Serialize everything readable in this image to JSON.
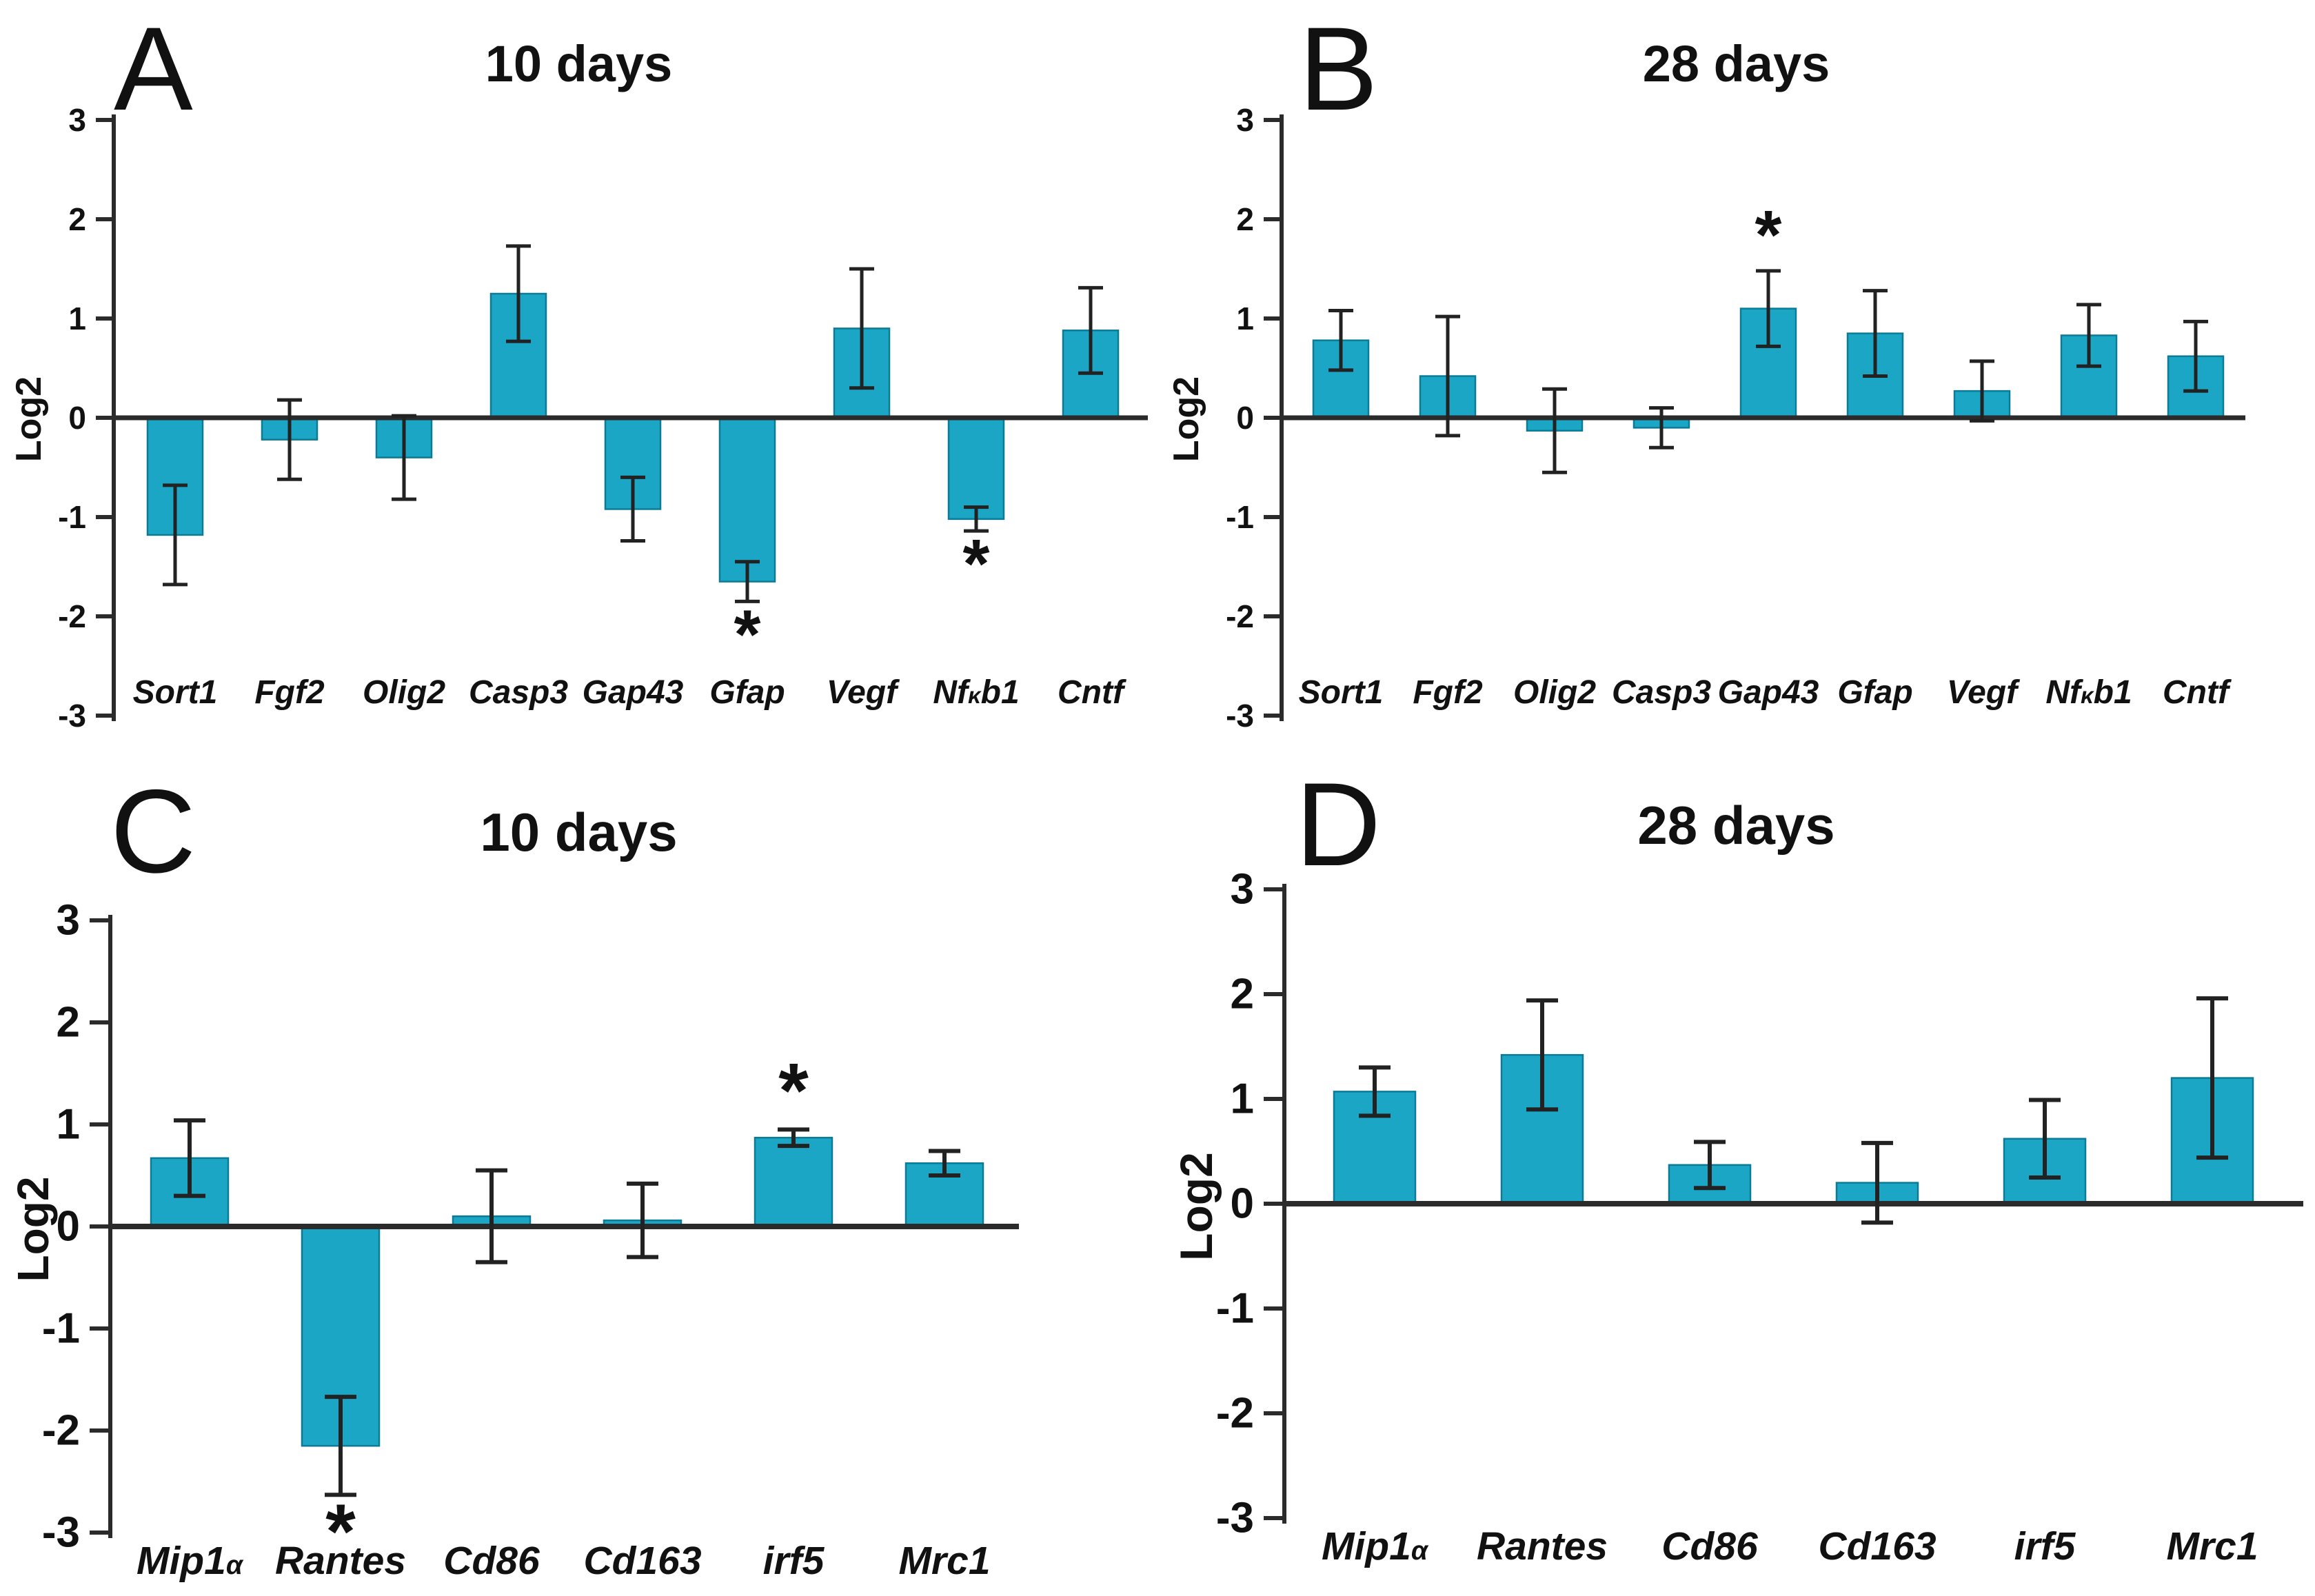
{
  "figure": {
    "background": "#ffffff",
    "bar_color": "#1BA6C6",
    "bar_edge_color": "#0C7C96",
    "error_color": "#222222",
    "axis_color": "#2b2b2b",
    "text_color": "#111111",
    "sig_symbol": "*"
  },
  "chart_data": [
    {
      "type": "bar",
      "panel_letter": "A",
      "title": "10 days",
      "ylabel": "Log2",
      "ylim": [
        -3,
        3
      ],
      "yticks": [
        3,
        2,
        1,
        0,
        -1,
        -2,
        -3
      ],
      "grid": false,
      "legend": null,
      "categories": [
        "Sort1",
        "Fgf2",
        "Olig2",
        "Casp3",
        "Gap43",
        "Gfap",
        "Vegf",
        "Nfκb1",
        "Cntf"
      ],
      "values": [
        -1.18,
        -0.22,
        -0.4,
        1.25,
        -0.92,
        -1.65,
        0.9,
        -1.02,
        0.88
      ],
      "errors": [
        0.5,
        0.4,
        0.42,
        0.48,
        0.32,
        0.2,
        0.6,
        0.12,
        0.43
      ],
      "significant": [
        null,
        null,
        null,
        null,
        null,
        "below",
        null,
        "below",
        null
      ]
    },
    {
      "type": "bar",
      "panel_letter": "B",
      "title": "28 days",
      "ylabel": "Log2",
      "ylim": [
        -3,
        3
      ],
      "yticks": [
        3,
        2,
        1,
        0,
        -1,
        -2,
        -3
      ],
      "grid": false,
      "legend": null,
      "categories": [
        "Sort1",
        "Fgf2",
        "Olig2",
        "Casp3",
        "Gap43",
        "Gfap",
        "Vegf",
        "Nfκb1",
        "Cntf"
      ],
      "values": [
        0.78,
        0.42,
        -0.13,
        -0.1,
        1.1,
        0.85,
        0.27,
        0.83,
        0.62
      ],
      "errors": [
        0.3,
        0.6,
        0.42,
        0.2,
        0.38,
        0.43,
        0.3,
        0.31,
        0.35
      ],
      "significant": [
        null,
        null,
        null,
        null,
        "above",
        null,
        null,
        null,
        null
      ]
    },
    {
      "type": "bar",
      "panel_letter": "C",
      "title": "10 days",
      "ylabel": "Log2",
      "ylim": [
        -3,
        3
      ],
      "yticks": [
        3,
        2,
        1,
        0,
        -1,
        -2,
        -3
      ],
      "grid": false,
      "legend": null,
      "categories": [
        "Mip1α",
        "Rantes",
        "Cd86",
        "Cd163",
        "irf5",
        "Mrc1"
      ],
      "values": [
        0.67,
        -2.15,
        0.1,
        0.06,
        0.87,
        0.62
      ],
      "errors": [
        0.37,
        0.48,
        0.45,
        0.36,
        0.08,
        0.12
      ],
      "significant": [
        null,
        "below",
        null,
        null,
        "above",
        null
      ]
    },
    {
      "type": "bar",
      "panel_letter": "D",
      "title": "28 days",
      "ylabel": "Log2",
      "ylim": [
        -3,
        3
      ],
      "yticks": [
        3,
        2,
        1,
        0,
        -1,
        -2,
        -3
      ],
      "grid": false,
      "legend": null,
      "categories": [
        "Mip1α",
        "Rantes",
        "Cd86",
        "Cd163",
        "irf5",
        "Mrc1"
      ],
      "values": [
        1.07,
        1.42,
        0.37,
        0.2,
        0.62,
        1.2
      ],
      "errors": [
        0.23,
        0.52,
        0.22,
        0.38,
        0.37,
        0.76
      ],
      "significant": [
        null,
        null,
        null,
        null,
        null,
        null
      ]
    }
  ]
}
